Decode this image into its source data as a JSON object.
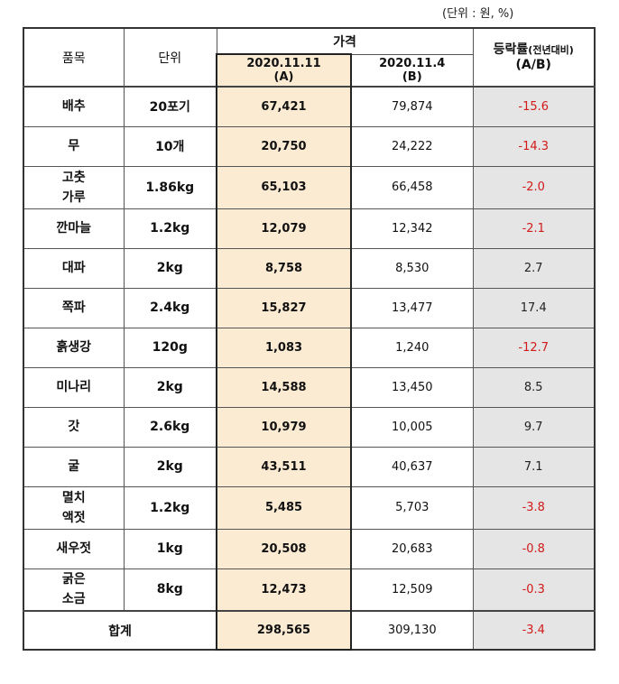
{
  "unit_note": "(단위 : 원, %)",
  "header": {
    "item": "품목",
    "unit": "단위",
    "price_group": "가격",
    "date_a": "2020.11.11",
    "label_a": "(A)",
    "date_b": "2020.11.4",
    "label_b": "(B)",
    "rate_main": "등락률",
    "rate_sub": "(전년대비)",
    "rate_ratio": "(A/B)"
  },
  "rows": [
    {
      "item": "배추",
      "unit": "20포기",
      "a": "67,421",
      "b": "79,874",
      "rate": "-15.6",
      "neg": true
    },
    {
      "item": "무",
      "unit": "10개",
      "a": "20,750",
      "b": "24,222",
      "rate": "-14.3",
      "neg": true
    },
    {
      "item": "고춧\n가루",
      "unit": "1.86kg",
      "a": "65,103",
      "b": "66,458",
      "rate": "-2.0",
      "neg": true
    },
    {
      "item": "깐마늘",
      "unit": "1.2kg",
      "a": "12,079",
      "b": "12,342",
      "rate": "-2.1",
      "neg": true
    },
    {
      "item": "대파",
      "unit": "2kg",
      "a": "8,758",
      "b": "8,530",
      "rate": "2.7",
      "neg": false
    },
    {
      "item": "쪽파",
      "unit": "2.4kg",
      "a": "15,827",
      "b": "13,477",
      "rate": "17.4",
      "neg": false
    },
    {
      "item": "흙생강",
      "unit": "120g",
      "a": "1,083",
      "b": "1,240",
      "rate": "-12.7",
      "neg": true
    },
    {
      "item": "미나리",
      "unit": "2kg",
      "a": "14,588",
      "b": "13,450",
      "rate": "8.5",
      "neg": false
    },
    {
      "item": "갓",
      "unit": "2.6kg",
      "a": "10,979",
      "b": "10,005",
      "rate": "9.7",
      "neg": false
    },
    {
      "item": "굴",
      "unit": "2kg",
      "a": "43,511",
      "b": "40,637",
      "rate": "7.1",
      "neg": false
    },
    {
      "item": "멸치\n액젓",
      "unit": "1.2kg",
      "a": "5,485",
      "b": "5,703",
      "rate": "-3.8",
      "neg": true
    },
    {
      "item": "새우젓",
      "unit": "1kg",
      "a": "20,508",
      "b": "20,683",
      "rate": "-0.8",
      "neg": true
    },
    {
      "item": "굵은\n소금",
      "unit": "8kg",
      "a": "12,473",
      "b": "12,509",
      "rate": "-0.3",
      "neg": true
    }
  ],
  "total": {
    "label": "합계",
    "a": "298,565",
    "b": "309,130",
    "rate": "-3.4"
  },
  "colors": {
    "highlight": "#fcebd3",
    "rate_bg": "#e5e5e5",
    "negative": "#d11a1a"
  }
}
